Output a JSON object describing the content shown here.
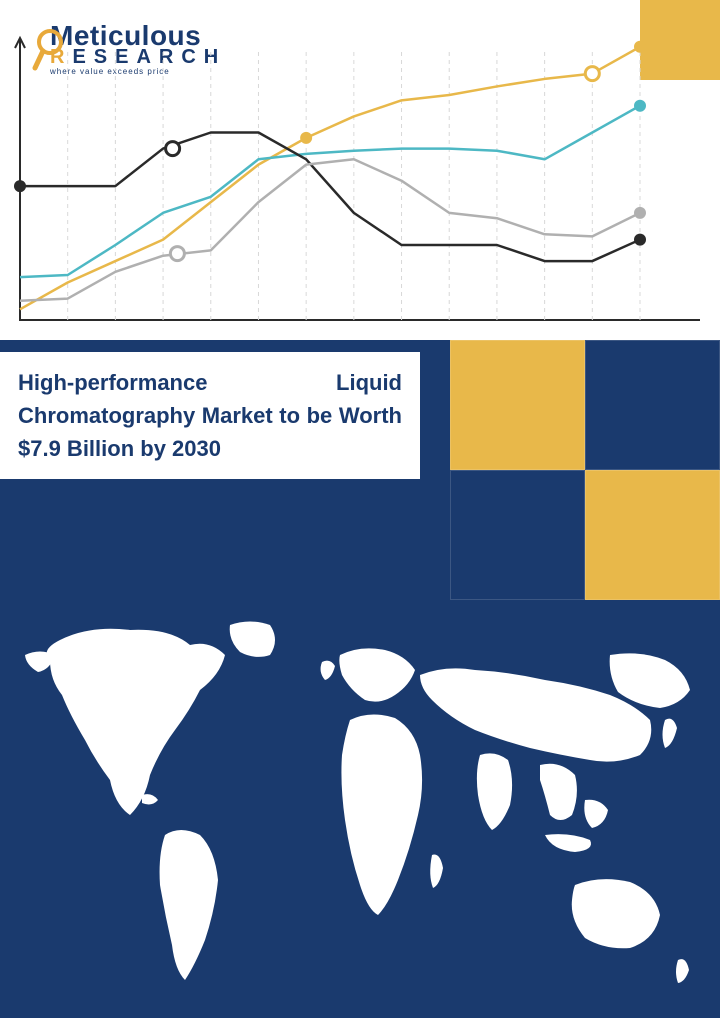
{
  "logo": {
    "name": "Meticulous",
    "sub": "RESEARCH",
    "tagline": "where value exceeds price",
    "magnifier_color": "#e8a93a",
    "text_color": "#1a3a6e"
  },
  "top_bar_color": "#e8b84a",
  "chart": {
    "type": "line",
    "background": "#ffffff",
    "axis_color": "#2a2a2a",
    "grid_color": "#d8d8d8",
    "grid_dash": "4,4",
    "line_width": 2.5,
    "x_ticks": [
      0,
      1,
      2,
      3,
      4,
      5,
      6,
      7,
      8,
      9,
      10,
      11,
      12,
      13
    ],
    "series": [
      {
        "name": "yellow",
        "color": "#e8b84a",
        "points": [
          [
            0,
            10
          ],
          [
            1,
            35
          ],
          [
            2,
            55
          ],
          [
            3,
            75
          ],
          [
            4,
            110
          ],
          [
            5,
            145
          ],
          [
            6,
            170
          ],
          [
            7,
            190
          ],
          [
            8,
            205
          ],
          [
            9,
            210
          ],
          [
            10,
            218
          ],
          [
            11,
            225
          ],
          [
            12,
            230
          ],
          [
            13,
            255
          ]
        ],
        "markers": [
          [
            6,
            170,
            "start"
          ],
          [
            12,
            230,
            "open"
          ],
          [
            13,
            255,
            "fill"
          ]
        ]
      },
      {
        "name": "teal",
        "color": "#4db8c4",
        "points": [
          [
            0,
            40
          ],
          [
            1,
            42
          ],
          [
            2,
            70
          ],
          [
            3,
            100
          ],
          [
            4,
            115
          ],
          [
            5,
            150
          ],
          [
            6,
            155
          ],
          [
            7,
            158
          ],
          [
            8,
            160
          ],
          [
            9,
            160
          ],
          [
            10,
            158
          ],
          [
            11,
            150
          ],
          [
            12,
            175
          ],
          [
            13,
            200
          ]
        ],
        "markers": [
          [
            13,
            200,
            "fill"
          ]
        ]
      },
      {
        "name": "dark",
        "color": "#2a2a2a",
        "points": [
          [
            0,
            125
          ],
          [
            1,
            125
          ],
          [
            2,
            125
          ],
          [
            3,
            160
          ],
          [
            4,
            175
          ],
          [
            5,
            175
          ],
          [
            6,
            150
          ],
          [
            7,
            100
          ],
          [
            8,
            70
          ],
          [
            9,
            70
          ],
          [
            10,
            70
          ],
          [
            11,
            55
          ],
          [
            12,
            55
          ],
          [
            13,
            75
          ]
        ],
        "markers": [
          [
            0,
            125,
            "fill"
          ],
          [
            3.2,
            160,
            "open"
          ],
          [
            13,
            75,
            "fill"
          ]
        ]
      },
      {
        "name": "gray",
        "color": "#b0b0b0",
        "points": [
          [
            0,
            18
          ],
          [
            1,
            20
          ],
          [
            2,
            45
          ],
          [
            3,
            60
          ],
          [
            4,
            65
          ],
          [
            5,
            110
          ],
          [
            6,
            145
          ],
          [
            7,
            150
          ],
          [
            8,
            130
          ],
          [
            9,
            100
          ],
          [
            10,
            95
          ],
          [
            11,
            80
          ],
          [
            12,
            78
          ],
          [
            13,
            100
          ]
        ],
        "markers": [
          [
            3.3,
            62,
            "open"
          ],
          [
            13,
            100,
            "fill"
          ]
        ]
      }
    ]
  },
  "title": {
    "text": "High-performance Liquid Chromatography Market to be Worth $7.9 Billion by 2030",
    "text_color": "#1a3a6e",
    "bg": "#ffffff",
    "panel_bg": "#1a3a6e"
  },
  "quad": {
    "colors": [
      "#e8b84a",
      "#1a3a6e",
      "#1a3a6e",
      "#e8b84a"
    ]
  },
  "map": {
    "bg": "#1a3a6e",
    "land": "#ffffff"
  }
}
